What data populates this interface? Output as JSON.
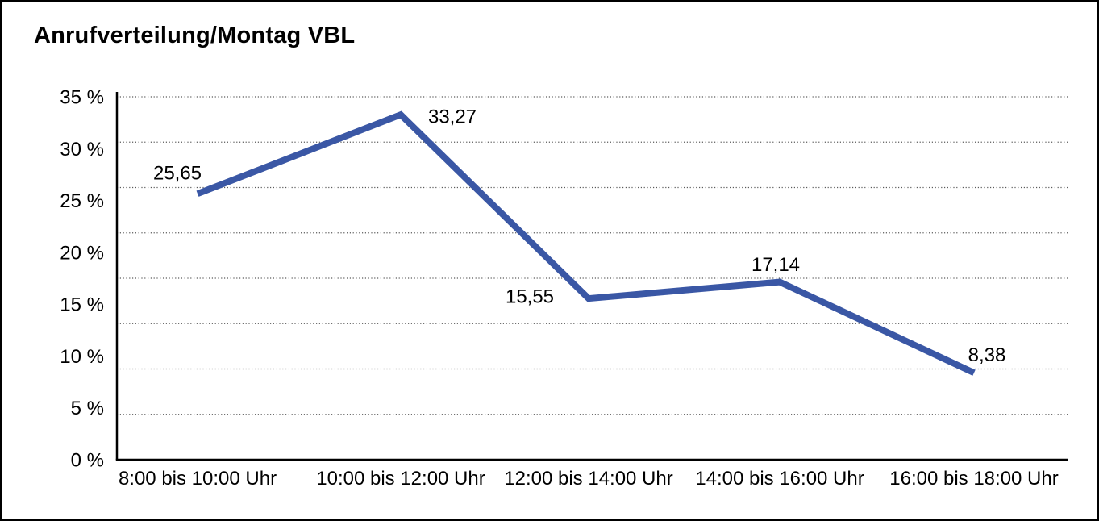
{
  "title": "Anrufverteilung/Montag VBL",
  "chart_data": {
    "type": "line",
    "title": "Anrufverteilung/Montag VBL",
    "categories": [
      "8:00 bis 10:00 Uhr",
      "10:00 bis 12:00 Uhr",
      "12:00 bis 14:00 Uhr",
      "14:00 bis 16:00 Uhr",
      "16:00 bis 18:00 Uhr"
    ],
    "series": [
      {
        "name": "Anrufverteilung Montag VBL",
        "values": [
          25.65,
          33.27,
          15.55,
          17.14,
          8.38
        ],
        "value_labels": [
          "25,65",
          "33,27",
          "15,55",
          "17,14",
          "8,38"
        ]
      }
    ],
    "xlabel": "",
    "ylabel": "",
    "ylim": [
      0,
      35
    ],
    "y_tick_step": 5,
    "y_tick_labels": [
      "35 %",
      "30 %",
      "25 %",
      "20 %",
      "15 %",
      "10 %",
      "5 %",
      "0 %"
    ],
    "grid": "horizontal-dotted",
    "grid_divisions": 8,
    "legend": "none",
    "colors": {
      "line": "#3A57A5",
      "grid": "#5a5a5a",
      "axis": "#000000",
      "text": "#000000",
      "background": "#ffffff"
    }
  }
}
